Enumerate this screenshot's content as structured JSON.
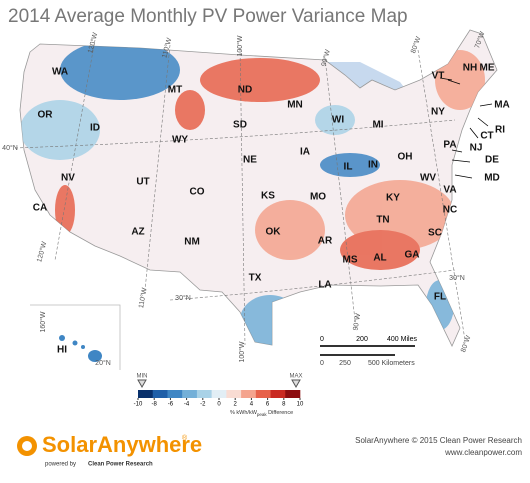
{
  "title": "2014 Average Monthly PV Power Variance Map",
  "states": [
    "WA",
    "OR",
    "ID",
    "MT",
    "WY",
    "ND",
    "SD",
    "MN",
    "WI",
    "MI",
    "NY",
    "VT",
    "NH",
    "ME",
    "MA",
    "RI",
    "CT",
    "NJ",
    "DE",
    "MD",
    "PA",
    "OH",
    "IN",
    "IL",
    "IA",
    "NE",
    "NV",
    "CA",
    "UT",
    "CO",
    "KS",
    "MO",
    "KY",
    "WV",
    "VA",
    "NC",
    "TN",
    "SC",
    "AR",
    "OK",
    "AZ",
    "NM",
    "TX",
    "MS",
    "AL",
    "GA",
    "LA",
    "FL",
    "HI"
  ],
  "graticule": [
    "120°W",
    "110°W",
    "100°W",
    "90°W",
    "80°W",
    "70°W",
    "40°N",
    "30°N",
    "30°N",
    "120°W",
    "110°W",
    "100°W",
    "90°W",
    "80°W",
    "160°W",
    "20°N"
  ],
  "legend": {
    "min": "MIN",
    "max": "MAX",
    "ticks": [
      -10,
      -8,
      -6,
      -4,
      -2,
      0,
      2,
      4,
      6,
      8,
      10
    ],
    "colors": [
      "#08306b",
      "#1f5fa8",
      "#3f86c4",
      "#74b0d8",
      "#a9d2e7",
      "#e2eef5",
      "#f9dcd3",
      "#f4a48e",
      "#e7624a",
      "#c92a22",
      "#8c0d10"
    ],
    "unit": [
      "% kWh/kW",
      "peak",
      " Difference"
    ]
  },
  "scale_bar": {
    "miles": [
      "0",
      "200",
      "400 Miles"
    ],
    "km": [
      "0",
      "250",
      "500 Kilometers"
    ]
  },
  "logo": {
    "name": "SolarAnywhere",
    "reg": "®",
    "powered": "powered by",
    "company": "Clean Power Research"
  },
  "credits": [
    "SolarAnywhere © 2015 Clean Power Research",
    "www.cleanpower.com"
  ]
}
